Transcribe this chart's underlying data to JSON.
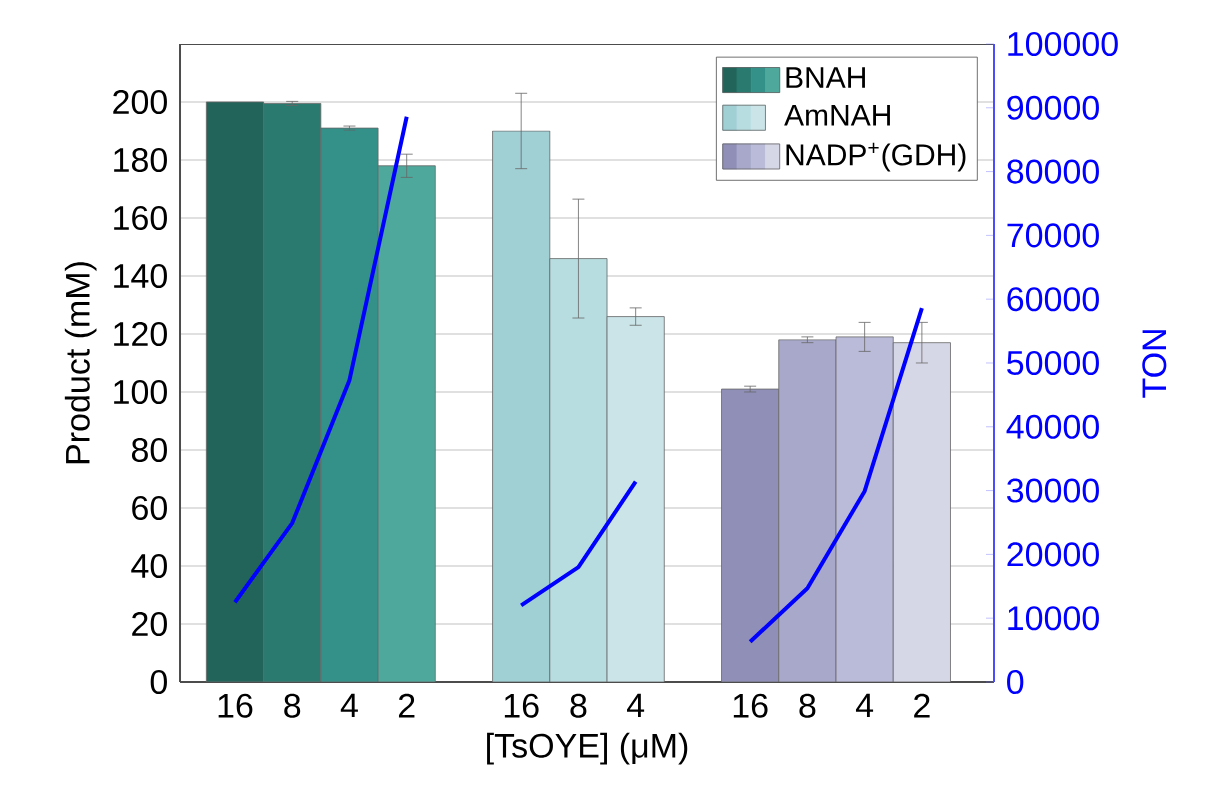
{
  "chart_data": {
    "type": "bar",
    "xlabel": "[TsOYE] (μM)",
    "ylabel": "Product (mM)",
    "y2label": "TON",
    "categories": [
      "16",
      "8",
      "4",
      "2",
      null,
      "16",
      "8",
      "4",
      null,
      "16",
      "8",
      "4",
      "2"
    ],
    "series": [
      {
        "name": "BNAH",
        "colors": [
          "#22645a",
          "#2a7a70",
          "#33918a",
          "#4fa89c",
          null,
          null,
          null,
          null,
          null,
          null,
          null,
          null,
          null
        ],
        "values": [
          200,
          199.5,
          191,
          178,
          null,
          null,
          null,
          null,
          null,
          null,
          null,
          null,
          null
        ],
        "errors": [
          null,
          0.7,
          0.7,
          4,
          null,
          null,
          null,
          null,
          null,
          null,
          null,
          null,
          null
        ]
      },
      {
        "name": "AmNAH",
        "colors": [
          null,
          null,
          null,
          null,
          null,
          "#a0cfd4",
          "#b8dde1",
          "#cae4e8",
          null,
          null,
          null,
          null,
          null
        ],
        "values": [
          null,
          null,
          null,
          null,
          null,
          190,
          146,
          126,
          null,
          null,
          null,
          null,
          null
        ],
        "errors": [
          null,
          null,
          null,
          null,
          null,
          13,
          20.5,
          3,
          null,
          null,
          null,
          null,
          null
        ]
      },
      {
        "name": "NADP$^{+}$(GDH)",
        "colors": [
          null,
          null,
          null,
          null,
          null,
          null,
          null,
          null,
          null,
          "#8f8fb8",
          "#a8a9ca",
          "#babbd9",
          "#d6d7e6"
        ],
        "values": [
          null,
          null,
          null,
          null,
          null,
          null,
          null,
          null,
          null,
          101,
          118,
          119,
          117
        ],
        "errors": [
          null,
          null,
          null,
          null,
          null,
          null,
          null,
          null,
          null,
          1,
          1,
          5,
          7
        ]
      },
      {
        "type": "line",
        "axis": "y2",
        "color": "#0000ff",
        "values": [
          12500,
          24900,
          47300,
          88600,
          null,
          null,
          null,
          null,
          null,
          null,
          null,
          null,
          null
        ]
      },
      {
        "type": "line",
        "axis": "y2",
        "color": "#0000ff",
        "values": [
          null,
          null,
          null,
          null,
          null,
          12000,
          18000,
          31400,
          null,
          null,
          null,
          null,
          null
        ]
      },
      {
        "type": "line",
        "axis": "y2",
        "color": "#0000ff",
        "values": [
          null,
          null,
          null,
          null,
          null,
          null,
          null,
          null,
          null,
          6300,
          14700,
          29900,
          58600
        ]
      }
    ],
    "ylim": [
      0,
      220
    ],
    "yticks": [
      0,
      20,
      40,
      60,
      80,
      100,
      120,
      140,
      160,
      180,
      200
    ],
    "y2lim": [
      0,
      100000
    ],
    "y2ticks": [
      0,
      10000,
      20000,
      30000,
      40000,
      50000,
      60000,
      70000,
      80000,
      90000,
      100000
    ],
    "grid": "y",
    "legend": "top right"
  }
}
